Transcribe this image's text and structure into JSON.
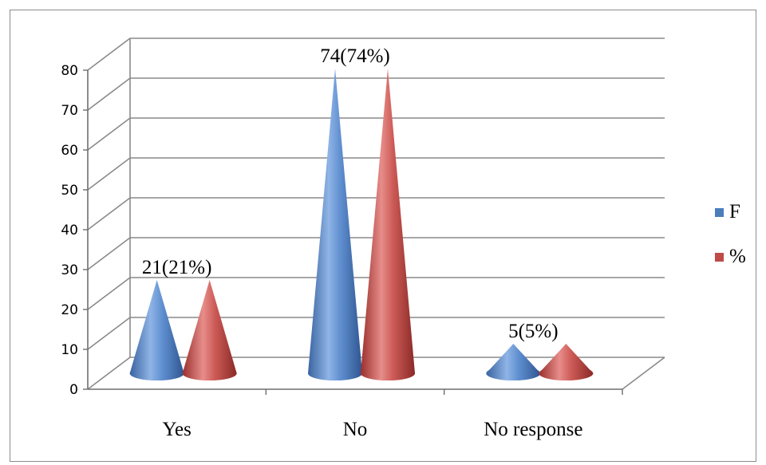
{
  "chart_data": {
    "type": "bar",
    "style": "3d-cone",
    "categories": [
      "Yes",
      "No",
      "No response"
    ],
    "series": [
      {
        "name": "F",
        "values": [
          21,
          74,
          5
        ],
        "color": "#4a7ebb"
      },
      {
        "name": "%",
        "values": [
          21,
          74,
          5
        ],
        "color": "#be4b48"
      }
    ],
    "data_labels": [
      "21(21%)",
      "74(74%)",
      "5(5%)"
    ],
    "yticks": [
      "0",
      "10",
      "20",
      "30",
      "40",
      "50",
      "60",
      "70",
      "80"
    ],
    "ylim": [
      0,
      80
    ],
    "grid": true,
    "legend": "right"
  }
}
